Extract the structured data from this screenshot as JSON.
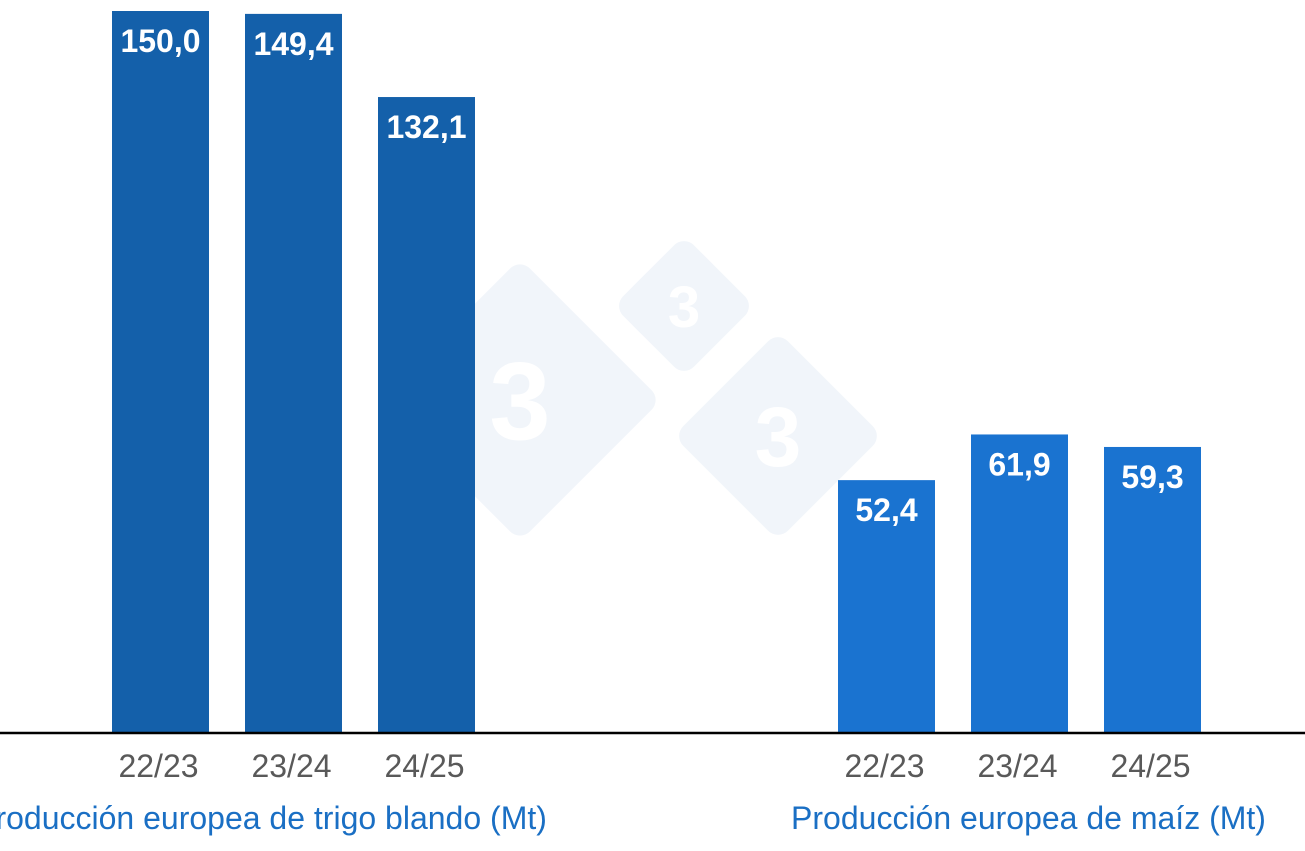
{
  "chart_data": {
    "type": "bar",
    "groups": [
      {
        "label": "Producción europea de trigo blando (Mt)",
        "categories": [
          "22/23",
          "23/24",
          "24/25"
        ],
        "values": [
          150.0,
          149.4,
          132.1
        ],
        "value_labels": [
          "150,0",
          "149,4",
          "132,1"
        ],
        "color": "#1460AA"
      },
      {
        "label": "Producción europea de maíz (Mt)",
        "categories": [
          "22/23",
          "23/24",
          "24/25"
        ],
        "values": [
          52.4,
          61.9,
          59.3
        ],
        "value_labels": [
          "52,4",
          "61,9",
          "59,3"
        ],
        "color": "#1A73D0"
      }
    ],
    "ylim": [
      0,
      150
    ],
    "grid": false,
    "legend": "none"
  },
  "colors": {
    "wheat_bar": "#1460AA",
    "maize_bar": "#1A73D0",
    "group_label": "#1A6FC4",
    "tick_label": "#595959",
    "value_label": "#FFFFFF",
    "axis": "#000000",
    "watermark": "#F1F5FA"
  },
  "watermark": {
    "icon": "333-logo-watermark",
    "glyph": "3"
  }
}
